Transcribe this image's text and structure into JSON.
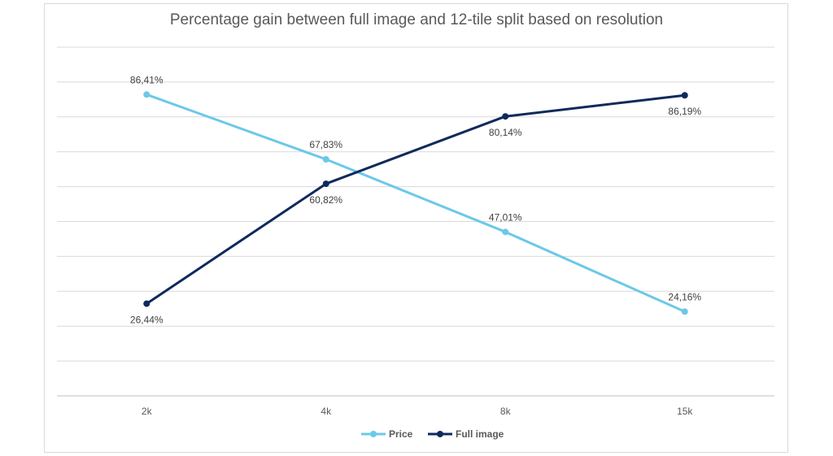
{
  "chart_data": {
    "type": "line",
    "title": "Percentage gain between full image and 12-tile split based on resolution",
    "categories": [
      "2k",
      "4k",
      "8k",
      "15k"
    ],
    "ylim": [
      0,
      100
    ],
    "grid": true,
    "legend_position": "bottom",
    "series": [
      {
        "name": "Price",
        "color": "#6cc8e8",
        "values": [
          86.41,
          67.83,
          47.01,
          24.16
        ],
        "labels": [
          "86,41%",
          "67,83%",
          "47,01%",
          "24,16%"
        ],
        "label_side": [
          "above",
          "above",
          "above",
          "above"
        ]
      },
      {
        "name": "Full image",
        "color": "#0e2a5c",
        "values": [
          26.44,
          60.82,
          80.14,
          86.19
        ],
        "labels": [
          "26,44%",
          "60,82%",
          "80,14%",
          "86,19%"
        ],
        "label_side": [
          "below",
          "below",
          "below",
          "below"
        ]
      }
    ]
  }
}
